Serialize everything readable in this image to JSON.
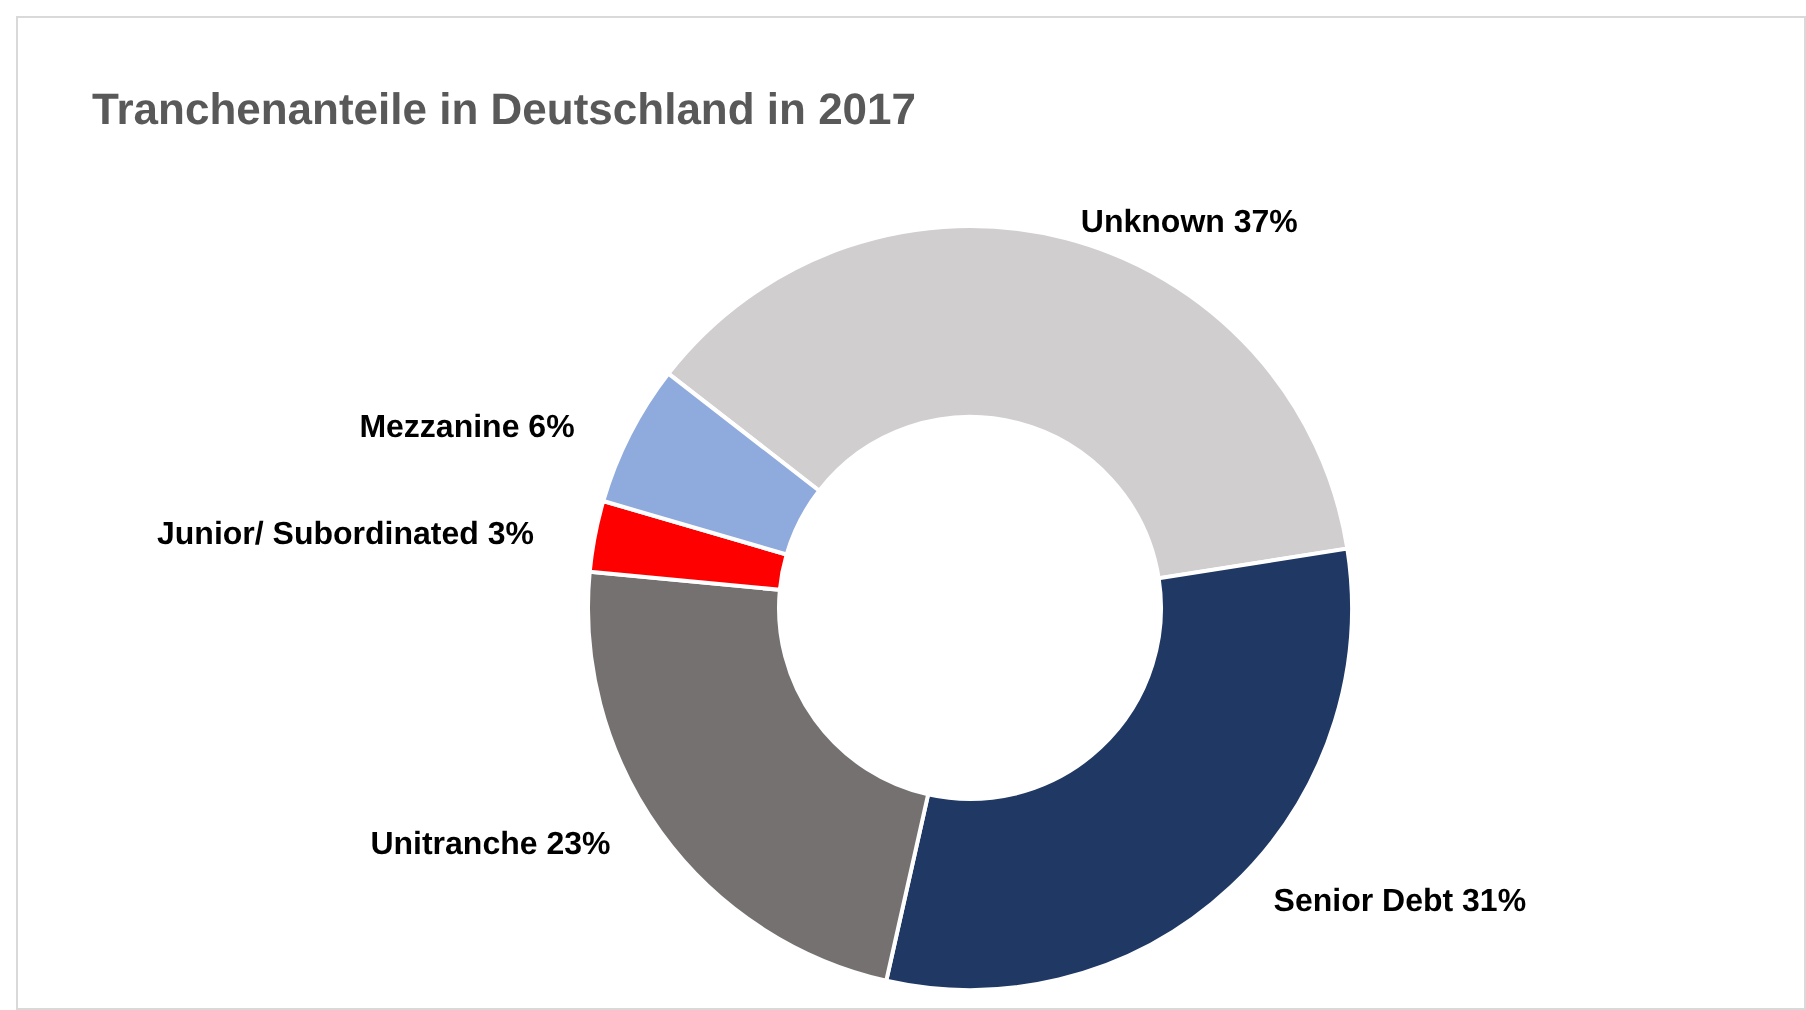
{
  "chart_data": {
    "type": "donut",
    "title": "Tranchenanteile in Deutschland in 2017",
    "categories": [
      "Unknown",
      "Senior Debt",
      "Unitranche",
      "Junior/ Subordinated",
      "Mezzanine"
    ],
    "values": [
      37,
      31,
      23,
      3,
      6
    ],
    "value_labels": [
      "37%",
      "31%",
      "23%",
      "3%",
      "6%"
    ],
    "colors": [
      "#d0cece",
      "#203864",
      "#767171",
      "#ff0000",
      "#8faadc"
    ]
  }
}
